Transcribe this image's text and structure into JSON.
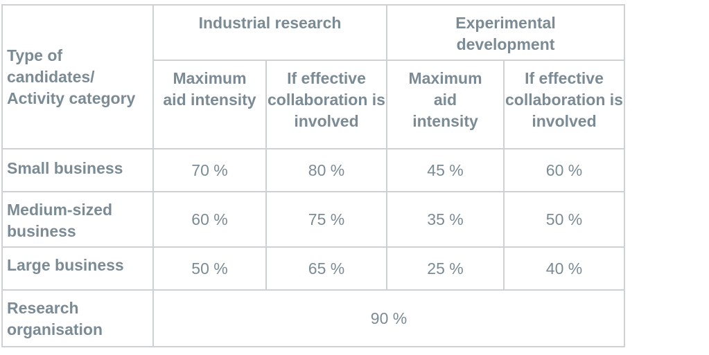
{
  "corner_header": "Type of candidates/ Activity category",
  "groups": {
    "industrial": "Industrial research",
    "experimental": "Experimental development"
  },
  "subheaders": {
    "industrial_max": "Maximum aid intensity",
    "industrial_collab": "If effective collaboration is involved",
    "experimental_max": "Maximum aid intensity",
    "experimental_collab": "If effective collaboration is involved"
  },
  "rows": [
    {
      "label": "Small business",
      "values": [
        "70 %",
        "80 %",
        "45 %",
        "60 %"
      ]
    },
    {
      "label": "Medium-sized business",
      "values": [
        "60 %",
        "75 %",
        "35 %",
        "50 %"
      ]
    },
    {
      "label": "Large business",
      "values": [
        "50 %",
        "65 %",
        "25 %",
        "40 %"
      ]
    }
  ],
  "research_org": {
    "label": "Research organisation",
    "value": "90 %"
  },
  "colors": {
    "text": "#7b8b95",
    "border": "#cdd1d4"
  }
}
